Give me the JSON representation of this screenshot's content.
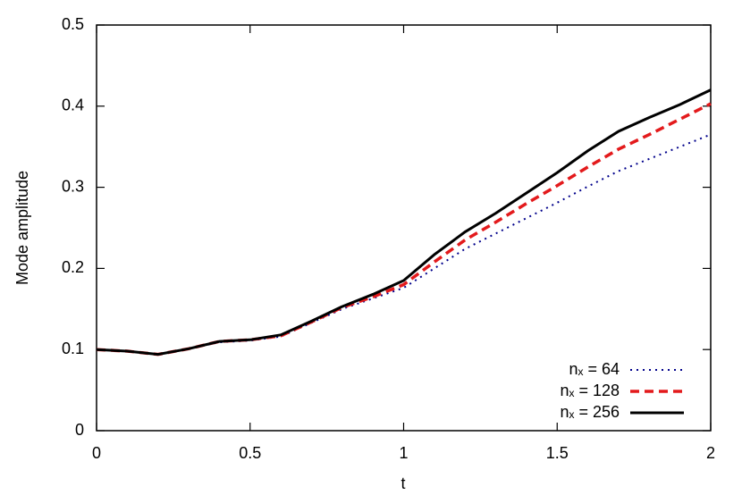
{
  "chart_data": {
    "type": "line",
    "xlabel": "t",
    "ylabel": "Mode amplitude",
    "x": [
      0,
      0.1,
      0.2,
      0.3,
      0.4,
      0.5,
      0.6,
      0.7,
      0.8,
      0.9,
      1.0,
      1.1,
      1.2,
      1.3,
      1.4,
      1.5,
      1.6,
      1.7,
      1.8,
      1.9,
      2.0
    ],
    "series": [
      {
        "name": "nₓ = 64",
        "color": "#00008b",
        "dash": "dotted",
        "values": [
          0.1,
          0.098,
          0.094,
          0.101,
          0.109,
          0.111,
          0.116,
          0.133,
          0.15,
          0.163,
          0.176,
          0.2,
          0.224,
          0.243,
          0.262,
          0.281,
          0.301,
          0.32,
          0.335,
          0.35,
          0.365
        ]
      },
      {
        "name": "nₓ = 128",
        "color": "#e31a1c",
        "dash": "dashed",
        "values": [
          0.1,
          0.098,
          0.094,
          0.101,
          0.11,
          0.112,
          0.117,
          0.134,
          0.152,
          0.165,
          0.18,
          0.208,
          0.235,
          0.257,
          0.28,
          0.302,
          0.325,
          0.347,
          0.365,
          0.384,
          0.403
        ]
      },
      {
        "name": "nₓ = 256",
        "color": "#000000",
        "dash": "solid",
        "values": [
          0.1,
          0.098,
          0.094,
          0.101,
          0.11,
          0.112,
          0.118,
          0.135,
          0.153,
          0.168,
          0.185,
          0.217,
          0.245,
          0.268,
          0.293,
          0.318,
          0.345,
          0.369,
          0.386,
          0.402,
          0.42
        ]
      }
    ],
    "xlim": [
      0,
      2
    ],
    "xticks": [
      0,
      0.5,
      1,
      1.5,
      2
    ],
    "ylim": [
      0,
      0.5
    ],
    "yticks": [
      0,
      0.1,
      0.2,
      0.3,
      0.4,
      0.5
    ],
    "legend": "bottom-right"
  }
}
